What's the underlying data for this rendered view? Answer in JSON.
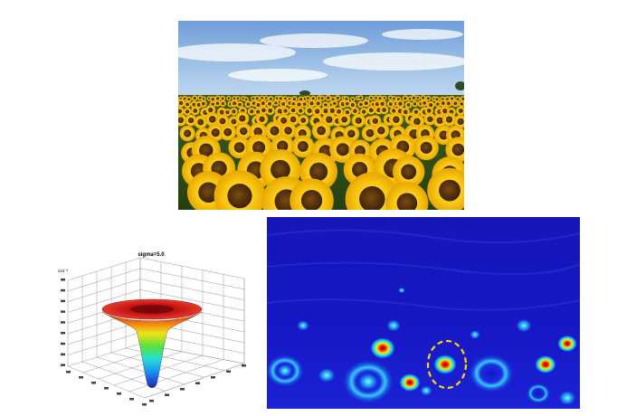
{
  "figure": {
    "photo": {
      "subject": "sunflower-field"
    },
    "surface_plot": {
      "title": "sigma=5.0",
      "z_exponent_label": "x10⁻³",
      "colormap": "jet"
    },
    "response_map": {
      "colormap": "jet",
      "highlight": {
        "shape": "dashed-ellipse",
        "color": "#ffd700"
      }
    }
  }
}
